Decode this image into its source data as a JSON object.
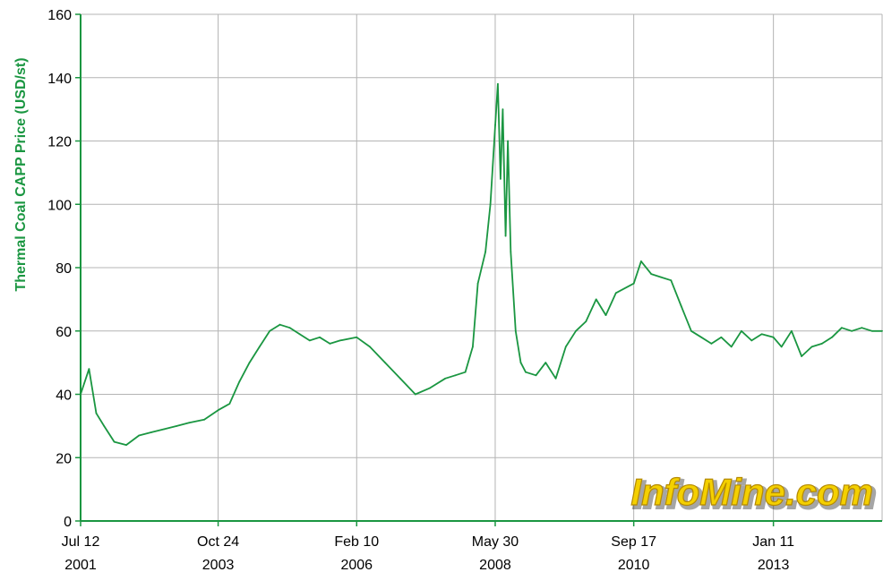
{
  "chart_data": {
    "type": "line",
    "title": "",
    "xlabel": "",
    "ylabel": "Thermal Coal CAPP Price (USD/st)",
    "ylim": [
      0,
      160
    ],
    "yticks": [
      0,
      20,
      40,
      60,
      80,
      100,
      120,
      140,
      160
    ],
    "xticks": [
      {
        "date": "2001-07-12",
        "label_top": "Jul 12",
        "label_bottom": "2001"
      },
      {
        "date": "2003-10-24",
        "label_top": "Oct 24",
        "label_bottom": "2003"
      },
      {
        "date": "2006-02-10",
        "label_top": "Feb 10",
        "label_bottom": "2006"
      },
      {
        "date": "2008-05-30",
        "label_top": "May 30",
        "label_bottom": "2008"
      },
      {
        "date": "2010-09-17",
        "label_top": "Sep 17",
        "label_bottom": "2010"
      },
      {
        "date": "2013-01-11",
        "label_top": "Jan 11",
        "label_bottom": "2013"
      }
    ],
    "xlim": [
      "2001-07-12",
      "2014-11-01"
    ],
    "grid": true,
    "series": [
      {
        "color": "#1a9641",
        "x": [
          "2001-07-12",
          "2001-09-01",
          "2001-10-15",
          "2001-12-01",
          "2002-02-01",
          "2002-04-15",
          "2002-07-01",
          "2002-09-15",
          "2002-12-01",
          "2003-02-15",
          "2003-05-01",
          "2003-08-01",
          "2003-10-24",
          "2004-01-01",
          "2004-03-01",
          "2004-05-01",
          "2004-07-01",
          "2004-09-01",
          "2004-11-01",
          "2005-01-01",
          "2005-03-01",
          "2005-05-01",
          "2005-07-01",
          "2005-09-01",
          "2005-11-01",
          "2006-02-10",
          "2006-05-01",
          "2006-08-01",
          "2006-11-01",
          "2007-02-01",
          "2007-05-01",
          "2007-08-01",
          "2007-10-01",
          "2007-12-01",
          "2008-01-15",
          "2008-02-15",
          "2008-04-01",
          "2008-05-01",
          "2008-05-30",
          "2008-06-15",
          "2008-07-01",
          "2008-07-15",
          "2008-08-01",
          "2008-08-15",
          "2008-09-01",
          "2008-10-01",
          "2008-11-01",
          "2008-12-01",
          "2009-02-01",
          "2009-04-01",
          "2009-06-01",
          "2009-08-01",
          "2009-10-01",
          "2009-12-01",
          "2010-02-01",
          "2010-04-01",
          "2010-06-01",
          "2010-09-17",
          "2010-11-01",
          "2011-01-01",
          "2011-03-01",
          "2011-05-01",
          "2011-07-01",
          "2011-09-01",
          "2011-11-01",
          "2012-01-01",
          "2012-03-01",
          "2012-05-01",
          "2012-07-01",
          "2012-09-01",
          "2012-11-01",
          "2013-01-11",
          "2013-03-01",
          "2013-05-01",
          "2013-07-01",
          "2013-09-01",
          "2013-11-01",
          "2014-01-01",
          "2014-03-01",
          "2014-05-01",
          "2014-07-01",
          "2014-09-01",
          "2014-11-01"
        ],
        "y": [
          40,
          48,
          34,
          30,
          25,
          24,
          27,
          28,
          29,
          30,
          31,
          32,
          35,
          37,
          44,
          50,
          55,
          60,
          62,
          61,
          59,
          57,
          58,
          56,
          57,
          58,
          55,
          50,
          45,
          40,
          42,
          45,
          46,
          47,
          55,
          75,
          85,
          100,
          125,
          138,
          108,
          130,
          90,
          120,
          85,
          60,
          50,
          47,
          46,
          50,
          45,
          55,
          60,
          63,
          70,
          65,
          72,
          75,
          82,
          78,
          77,
          76,
          68,
          60,
          58,
          56,
          58,
          55,
          60,
          57,
          59,
          58,
          55,
          60,
          52,
          55,
          56,
          58,
          61,
          60,
          61,
          60,
          60
        ]
      }
    ]
  },
  "watermark": "InfoMine.com"
}
